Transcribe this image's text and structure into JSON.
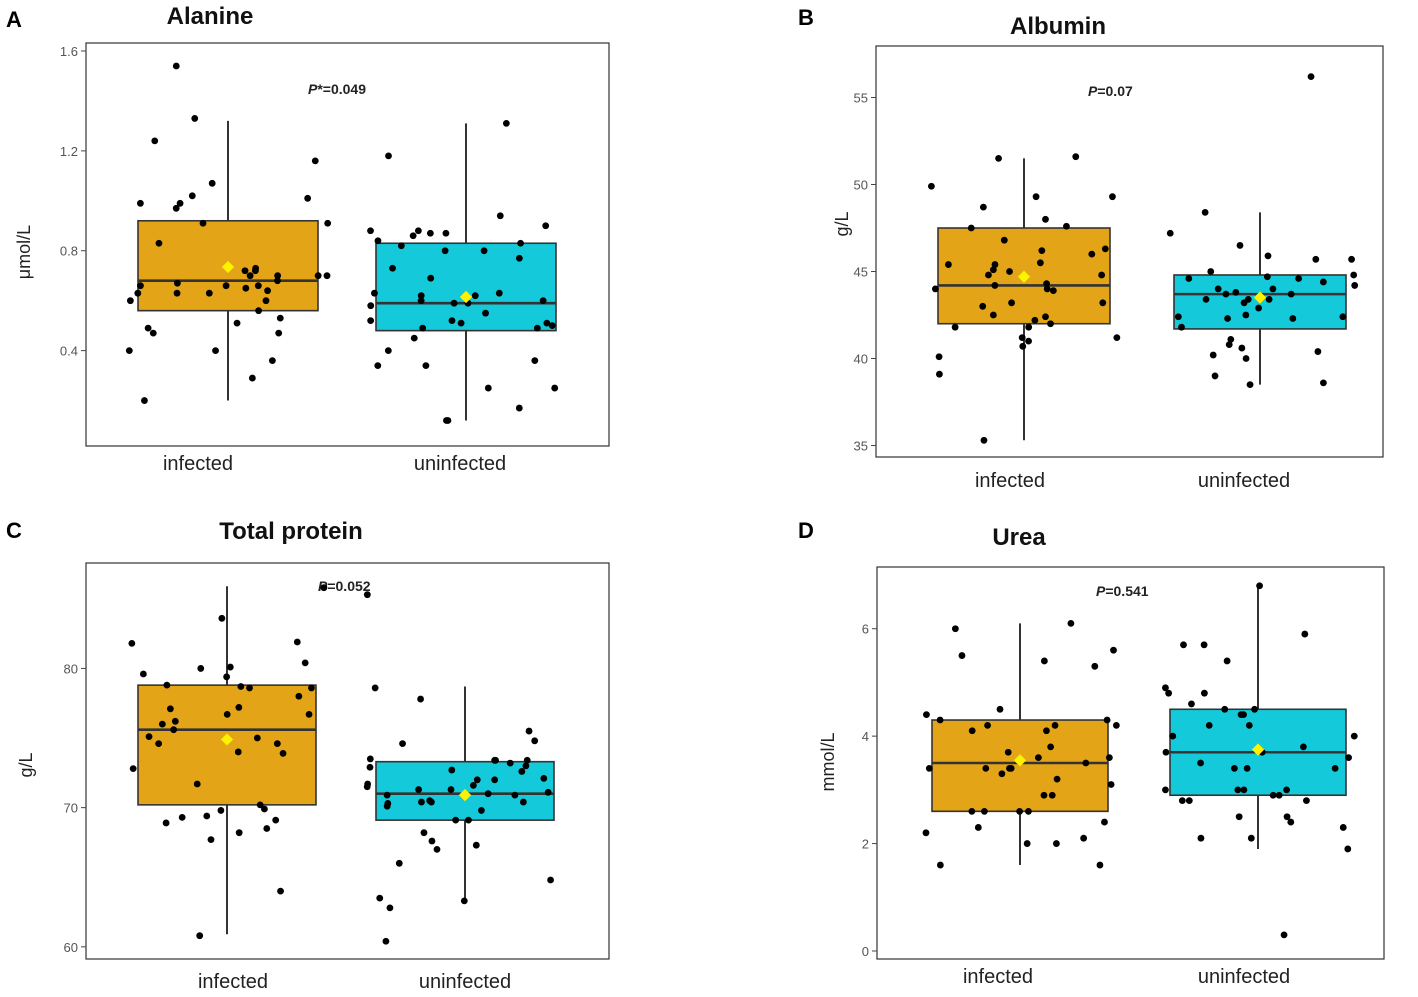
{
  "chart_data": [
    {
      "type": "box",
      "panel": "A",
      "title": "Alanine",
      "ylabel": "μmol/L",
      "ylim": [
        0.05,
        1.6
      ],
      "yticks": [
        0.4,
        0.8,
        1.2,
        1.6
      ],
      "ytick_labels": [
        "0.4",
        "0.8",
        "1.2",
        "1.6"
      ],
      "p_prefix": "P",
      "p_suffix": "*=0.049",
      "groups": [
        {
          "name": "infected",
          "color": "#E4A417",
          "q1": 0.56,
          "median": 0.68,
          "q3": 0.92,
          "whisker_low": 0.2,
          "whisker_high": 1.32,
          "mean": 0.735,
          "points": [
            0.4,
            0.73,
            0.7,
            0.66,
            0.6,
            0.83,
            0.72,
            0.56,
            1.24,
            1.16,
            0.99,
            0.49,
            0.47,
            0.47,
            0.36,
            0.29,
            0.66,
            0.64,
            1.01,
            0.7,
            0.63,
            0.66,
            0.53,
            0.99,
            1.02,
            0.6,
            0.65,
            0.4,
            0.63,
            0.67,
            0.97,
            0.63,
            0.91,
            0.7,
            0.68,
            0.7,
            0.91,
            1.33,
            1.54,
            1.07,
            0.51,
            0.72,
            0.2
          ]
        },
        {
          "name": "uninfected",
          "color": "#14CADA",
          "q1": 0.48,
          "median": 0.59,
          "q3": 0.83,
          "whisker_low": 0.12,
          "whisker_high": 1.31,
          "mean": 0.615,
          "points": [
            0.86,
            0.52,
            0.34,
            0.12,
            0.12,
            0.63,
            0.63,
            0.59,
            0.82,
            1.18,
            0.51,
            0.45,
            0.62,
            0.94,
            0.73,
            0.77,
            0.49,
            0.55,
            0.87,
            0.58,
            0.6,
            0.36,
            0.34,
            0.5,
            0.49,
            0.69,
            0.83,
            0.62,
            0.4,
            0.88,
            0.84,
            0.87,
            0.17,
            0.51,
            0.9,
            0.59,
            0.88,
            0.52,
            0.6,
            0.25,
            0.25,
            0.8,
            0.8,
            1.31
          ]
        }
      ]
    },
    {
      "type": "box",
      "panel": "B",
      "title": "Albumin",
      "ylabel": "g/L",
      "ylim": [
        34.8,
        57.5
      ],
      "yticks": [
        35,
        40,
        45,
        50,
        55
      ],
      "ytick_labels": [
        "35",
        "40",
        "45",
        "50",
        "55"
      ],
      "p_prefix": "P",
      "p_suffix": "=0.07",
      "groups": [
        {
          "name": "infected",
          "color": "#E4A417",
          "q1": 42.0,
          "median": 44.2,
          "q3": 47.5,
          "whisker_low": 35.3,
          "whisker_high": 51.5,
          "mean": 44.7,
          "points": [
            41.2,
            44.8,
            46.0,
            45.4,
            43.0,
            41.2,
            41.0,
            40.7,
            48.7,
            51.5,
            44.0,
            42.5,
            49.3,
            44.0,
            44.2,
            45.1,
            40.1,
            43.2,
            44.8,
            49.9,
            42.4,
            44.3,
            45.0,
            43.9,
            41.8,
            46.2,
            43.2,
            49.3,
            41.8,
            42.2,
            45.5,
            47.5,
            46.3,
            47.6,
            45.4,
            46.8,
            48.0,
            51.6,
            42.0,
            39.1,
            35.3
          ]
        },
        {
          "name": "uninfected",
          "color": "#14CADA",
          "q1": 41.7,
          "median": 43.7,
          "q3": 44.8,
          "whisker_low": 38.5,
          "whisker_high": 48.4,
          "mean": 43.5,
          "points": [
            42.3,
            41.1,
            40.0,
            43.4,
            44.2,
            43.2,
            44.6,
            40.6,
            41.8,
            44.6,
            44.4,
            45.9,
            43.7,
            43.7,
            44.0,
            40.8,
            45.7,
            44.7,
            43.8,
            43.4,
            42.5,
            46.5,
            40.2,
            42.4,
            44.8,
            43.4,
            42.9,
            45.0,
            40.4,
            42.3,
            42.4,
            47.2,
            44.0,
            39.0,
            38.6,
            48.4,
            38.5,
            56.2,
            45.7
          ]
        }
      ]
    },
    {
      "type": "box",
      "panel": "C",
      "title": "Total protein",
      "ylabel": "g/L",
      "ylim": [
        59.7,
        87.0
      ],
      "yticks": [
        60,
        70,
        80
      ],
      "ytick_labels": [
        "60",
        "70",
        "80"
      ],
      "p_prefix": "P",
      "p_suffix": "=0.052",
      "groups": [
        {
          "name": "infected",
          "color": "#E4A417",
          "q1": 70.2,
          "median": 75.6,
          "q3": 78.8,
          "whisker_low": 60.9,
          "whisker_high": 85.9,
          "mean": 74.9,
          "points": [
            76.2,
            75.0,
            71.7,
            69.9,
            80.1,
            81.8,
            81.9,
            68.5,
            70.2,
            79.6,
            68.2,
            60.8,
            68.9,
            78.0,
            74.0,
            76.7,
            76.7,
            80.0,
            85.8,
            77.2,
            75.6,
            75.1,
            69.3,
            69.4,
            69.8,
            67.7,
            76.0,
            64.0,
            80.4,
            78.6,
            78.6,
            78.7,
            78.8,
            74.6,
            73.9,
            69.1,
            83.6,
            77.1,
            74.6,
            79.4,
            72.8
          ]
        },
        {
          "name": "uninfected",
          "color": "#14CADA",
          "q1": 69.1,
          "median": 71.0,
          "q3": 73.3,
          "whisker_low": 63.3,
          "whisker_high": 78.7,
          "mean": 70.9,
          "points": [
            72.9,
            71.5,
            69.1,
            72.1,
            77.8,
            75.5,
            71.1,
            70.4,
            73.4,
            73.2,
            74.6,
            72.6,
            71.3,
            69.1,
            73.4,
            67.6,
            64.8,
            63.3,
            68.2,
            62.8,
            60.4,
            73.5,
            71.7,
            70.9,
            70.4,
            72.7,
            67.0,
            71.6,
            71.0,
            72.0,
            70.4,
            74.8,
            72.0,
            66.0,
            67.3,
            85.3,
            73.4,
            73.0,
            78.6,
            63.5,
            71.3,
            70.5,
            70.9,
            69.8,
            70.1,
            70.3
          ]
        }
      ]
    },
    {
      "type": "box",
      "panel": "D",
      "title": "Urea",
      "ylabel": "mmol/L",
      "ylim": [
        0,
        7.0
      ],
      "yticks": [
        0,
        2,
        4,
        6
      ],
      "ytick_labels": [
        "0",
        "2",
        "4",
        "6"
      ],
      "p_prefix": "P",
      "p_suffix": "=0.541",
      "groups": [
        {
          "name": "infected",
          "color": "#E4A417",
          "q1": 2.6,
          "median": 3.5,
          "q3": 4.3,
          "whisker_low": 1.6,
          "whisker_high": 6.1,
          "mean": 3.55,
          "points": [
            4.4,
            6.0,
            2.9,
            3.4,
            2.3,
            3.4,
            2.6,
            2.4,
            3.6,
            3.5,
            5.6,
            5.5,
            5.4,
            5.3,
            2.0,
            4.2,
            2.9,
            3.8,
            4.3,
            2.6,
            2.2,
            4.1,
            3.1,
            4.2,
            4.3,
            3.3,
            3.7,
            2.1,
            3.4,
            6.1,
            3.6,
            2.0,
            4.2,
            1.6,
            1.6,
            4.5,
            4.1,
            3.4,
            2.6,
            2.6,
            3.2
          ]
        },
        {
          "name": "uninfected",
          "color": "#14CADA",
          "q1": 2.9,
          "median": 3.7,
          "q3": 4.5,
          "whisker_low": 1.9,
          "whisker_high": 6.8,
          "mean": 3.75,
          "points": [
            3.6,
            2.4,
            2.8,
            0.3,
            4.2,
            3.0,
            2.9,
            2.3,
            2.1,
            3.5,
            5.9,
            4.8,
            4.9,
            3.0,
            4.4,
            2.5,
            1.9,
            4.8,
            3.7,
            2.8,
            4.2,
            4.0,
            2.5,
            3.8,
            3.4,
            4.6,
            4.4,
            5.4,
            4.5,
            3.0,
            4.5,
            2.1,
            3.7,
            6.8,
            5.7,
            4.0,
            2.8,
            3.4,
            3.0,
            5.7,
            3.4,
            2.9
          ]
        }
      ]
    }
  ]
}
